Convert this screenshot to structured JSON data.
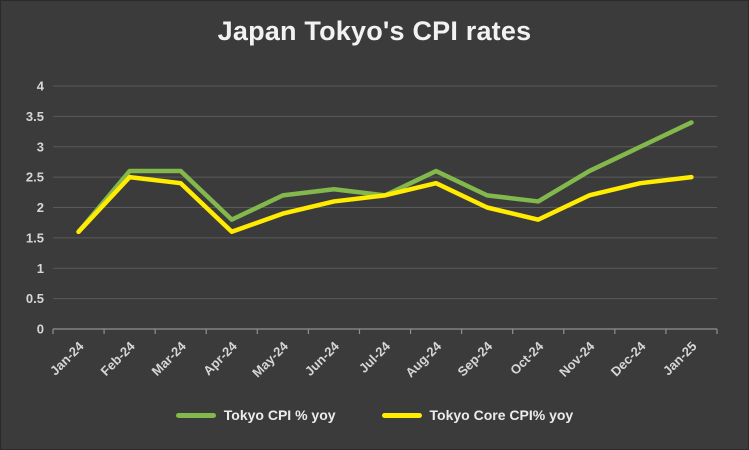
{
  "chart_data": {
    "type": "line",
    "title": "Japan Tokyo's CPI rates",
    "categories": [
      "Jan-24",
      "Feb-24",
      "Mar-24",
      "Apr-24",
      "May-24",
      "Jun-24",
      "Jul-24",
      "Aug-24",
      "Sep-24",
      "Oct-24",
      "Nov-24",
      "Dec-24",
      "Jan-25"
    ],
    "series": [
      {
        "name": "Tokyo CPI % yoy",
        "color": "#83b84c",
        "values": [
          1.6,
          2.6,
          2.6,
          1.8,
          2.2,
          2.3,
          2.2,
          2.6,
          2.2,
          2.1,
          2.6,
          3.0,
          3.4
        ]
      },
      {
        "name": "Tokyo Core CPI% yoy",
        "color": "#ffec00",
        "values": [
          1.6,
          2.5,
          2.4,
          1.6,
          1.9,
          2.1,
          2.2,
          2.4,
          2.0,
          1.8,
          2.2,
          2.4,
          2.5
        ]
      }
    ],
    "ylim": [
      0,
      4
    ],
    "ytick_step": 0.5,
    "ytick_labels": [
      "0",
      "0.5",
      "1",
      "1.5",
      "2",
      "2.5",
      "3",
      "3.5",
      "4"
    ],
    "grid": true,
    "legend_position": "bottom",
    "colors": {
      "background": "#3b3b3b",
      "gridline": "#5a5a5a",
      "axis": "#909090",
      "labels": "#d6d6d6",
      "title": "#f2f2f2"
    }
  }
}
